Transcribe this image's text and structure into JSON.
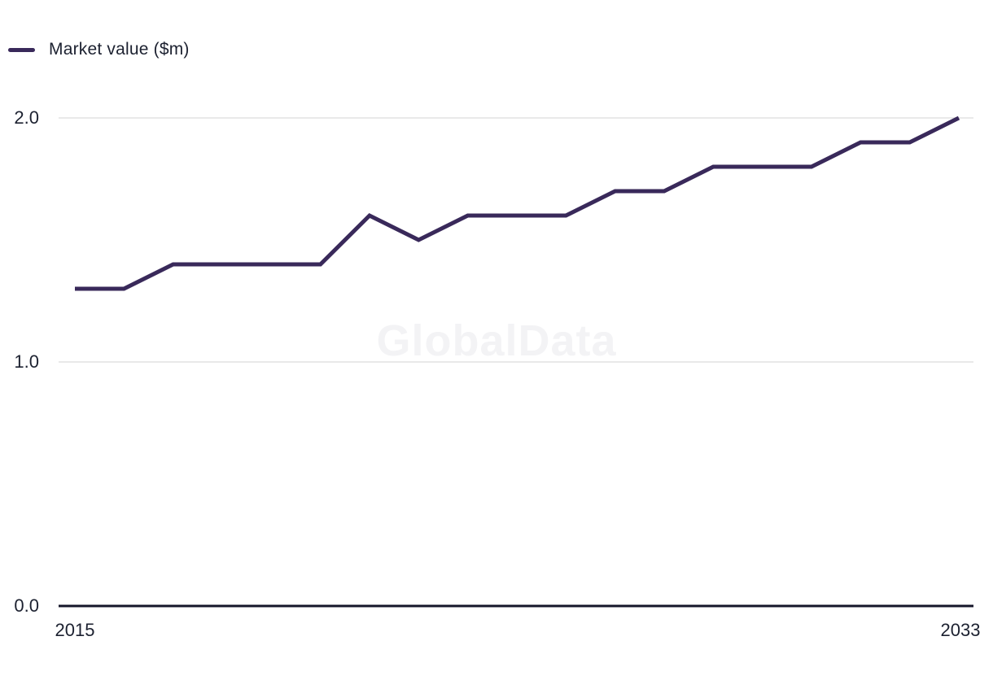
{
  "legend": {
    "label": "Market value ($m)"
  },
  "watermark": "GlobalData",
  "colors": {
    "line": "#39295a",
    "grid": "#e2e2e2",
    "axis": "#14162a",
    "text": "#1c2130",
    "watermark": "#f3f3f5"
  },
  "chart_data": {
    "type": "line",
    "title": "",
    "xlabel": "",
    "ylabel": "Market value ($m)",
    "x": [
      2015,
      2016,
      2017,
      2018,
      2019,
      2020,
      2021,
      2022,
      2023,
      2024,
      2025,
      2026,
      2027,
      2028,
      2029,
      2030,
      2031,
      2032,
      2033
    ],
    "series": [
      {
        "name": "Market value ($m)",
        "values": [
          1.3,
          1.3,
          1.4,
          1.4,
          1.4,
          1.4,
          1.6,
          1.5,
          1.6,
          1.6,
          1.6,
          1.7,
          1.7,
          1.8,
          1.8,
          1.8,
          1.9,
          1.9,
          2.0
        ]
      }
    ],
    "ylim": [
      0.0,
      2.0
    ],
    "yticks": [
      {
        "value": 2.0,
        "label": "2.0"
      },
      {
        "value": 1.0,
        "label": "1.0"
      },
      {
        "value": 0.0,
        "label": "0.0"
      }
    ],
    "xticks": [
      {
        "value": 2015,
        "label": "2015"
      },
      {
        "value": 2033,
        "label": "2033"
      }
    ],
    "grid": "horizontal",
    "legend_position": "top-left"
  }
}
